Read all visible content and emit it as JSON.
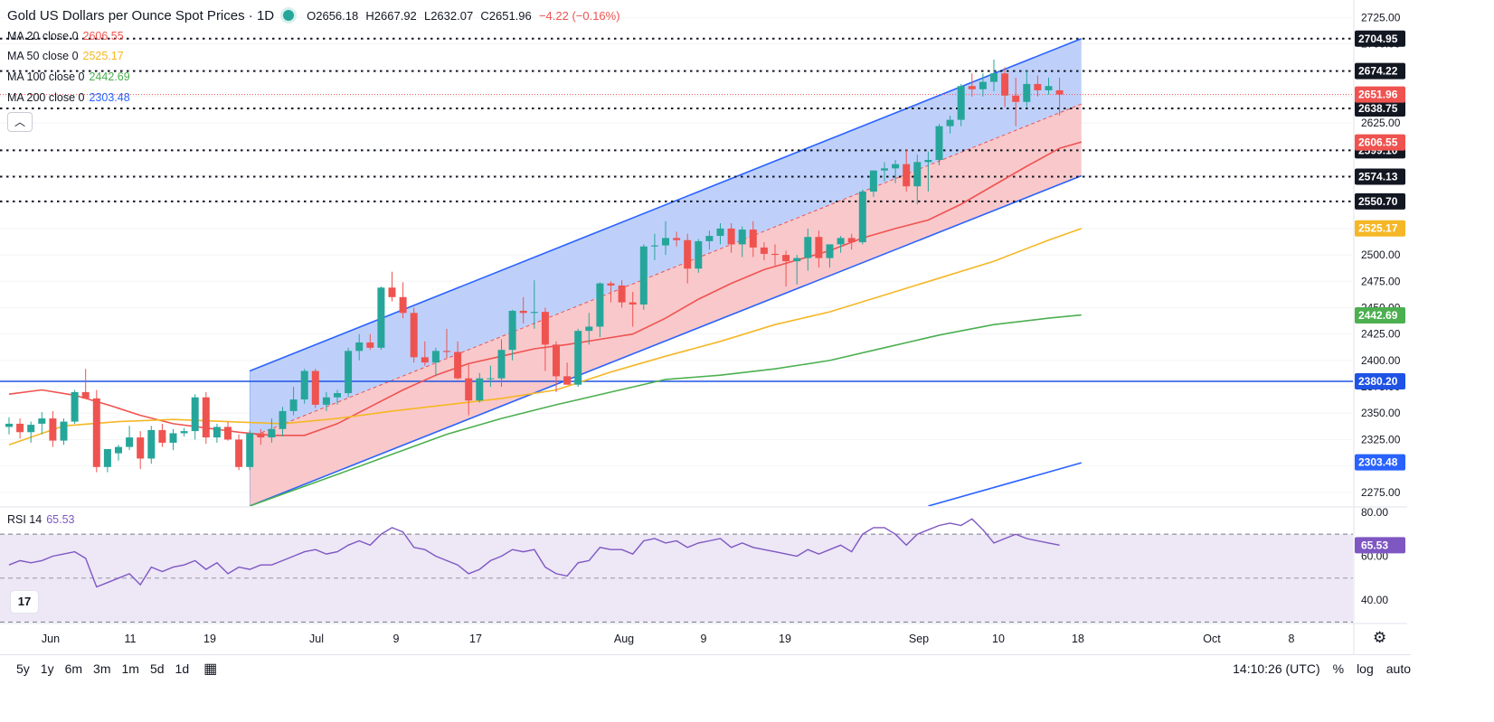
{
  "header": {
    "title": "Gold US Dollars per Ounce Spot Prices · 1D",
    "open": "O2656.18",
    "high": "H2667.92",
    "low": "L2632.07",
    "close": "C2651.96",
    "change": "−4.22 (−0.16%)"
  },
  "indicators": [
    {
      "label": "MA 20 close 0",
      "value": "2606.55",
      "color": "#ef5350"
    },
    {
      "label": "MA 50 close 0",
      "value": "2525.17",
      "color": "#f5b726"
    },
    {
      "label": "MA 100 close 0",
      "value": "2442.69",
      "color": "#4caf50"
    },
    {
      "label": "MA 200 close 0",
      "value": "2303.48",
      "color": "#2962ff"
    }
  ],
  "rsi": {
    "label": "RSI 14",
    "value": "65.53",
    "color": "#7e57c2"
  },
  "bottom_bar": {
    "timeframes": [
      "5y",
      "1y",
      "6m",
      "3m",
      "1m",
      "5d",
      "1d"
    ],
    "time": "14:10:26 (UTC)",
    "percent": "%",
    "log": "log",
    "auto": "auto"
  },
  "icons": {
    "collapse": "chevron-up-icon",
    "logo": "tradingview-logo-icon",
    "calendar": "calendar-icon",
    "settings": "gear-icon"
  },
  "colors": {
    "up": "#26a69a",
    "down": "#ef5350",
    "channel_upper_fill": "#bbcdfa",
    "channel_lower_fill": "#f9c5c8",
    "channel_line": "#2962ff",
    "rsi_band": "#ede7f6"
  },
  "chart_data": {
    "type": "candlestick",
    "title": "Gold US Dollars per Ounce Spot Prices · 1D",
    "x_tick_labels": [
      "Jun",
      "11",
      "19",
      "Jul",
      "9",
      "17",
      "Aug",
      "9",
      "19",
      "Sep",
      "10",
      "18",
      "Oct",
      "8"
    ],
    "y_ticks": [
      2275,
      2300,
      2325,
      2350,
      2375,
      2400,
      2425,
      2450,
      2475,
      2500,
      2525,
      2550,
      2575,
      2600,
      2625,
      2650,
      2675,
      2700,
      2725
    ],
    "ylim": [
      2262,
      2733
    ],
    "horizontal_levels": [
      {
        "value": 2704.95,
        "label": "2704.95",
        "style": "dotted"
      },
      {
        "value": 2674.22,
        "label": "2674.22",
        "style": "dotted"
      },
      {
        "value": 2638.75,
        "label": "2638.75",
        "style": "dotted"
      },
      {
        "value": 2599.1,
        "label": "2599.10",
        "style": "dotted"
      },
      {
        "value": 2574.13,
        "label": "2574.13",
        "style": "dotted"
      },
      {
        "value": 2550.7,
        "label": "2550.70",
        "style": "dotted"
      },
      {
        "value": 2380.2,
        "label": "2380.20",
        "style": "solid"
      }
    ],
    "price_labels": [
      {
        "value": 2651.96,
        "label": "2651.96",
        "color": "#ef5350"
      },
      {
        "value": 2606.55,
        "label": "2606.55",
        "color": "#ef5350"
      },
      {
        "value": 2525.17,
        "label": "2525.17",
        "color": "#f5b726"
      },
      {
        "value": 2442.69,
        "label": "2442.69",
        "color": "#4caf50"
      },
      {
        "value": 2303.48,
        "label": "2303.48",
        "color": "#2962ff"
      }
    ],
    "candles": [
      [
        2337,
        2346,
        2330,
        2340
      ],
      [
        2340,
        2345,
        2326,
        2332
      ],
      [
        2332,
        2342,
        2322,
        2339
      ],
      [
        2340,
        2351,
        2330,
        2345
      ],
      [
        2345,
        2352,
        2318,
        2324
      ],
      [
        2324,
        2345,
        2320,
        2342
      ],
      [
        2342,
        2372,
        2340,
        2370
      ],
      [
        2370,
        2392,
        2368,
        2364
      ],
      [
        2364,
        2372,
        2294,
        2299
      ],
      [
        2299,
        2312,
        2294,
        2316
      ],
      [
        2312,
        2320,
        2305,
        2318
      ],
      [
        2318,
        2338,
        2315,
        2327
      ],
      [
        2327,
        2333,
        2297,
        2307
      ],
      [
        2307,
        2338,
        2302,
        2334
      ],
      [
        2334,
        2340,
        2318,
        2322
      ],
      [
        2322,
        2335,
        2315,
        2331
      ],
      [
        2331,
        2336,
        2328,
        2333
      ],
      [
        2333,
        2368,
        2325,
        2365
      ],
      [
        2365,
        2370,
        2321,
        2327
      ],
      [
        2327,
        2340,
        2322,
        2337
      ],
      [
        2337,
        2342,
        2324,
        2325
      ],
      [
        2325,
        2330,
        2296,
        2299
      ],
      [
        2299,
        2334,
        2296,
        2331
      ],
      [
        2331,
        2335,
        2320,
        2327
      ],
      [
        2327,
        2345,
        2322,
        2335
      ],
      [
        2335,
        2356,
        2328,
        2352
      ],
      [
        2352,
        2375,
        2348,
        2363
      ],
      [
        2363,
        2392,
        2359,
        2390
      ],
      [
        2390,
        2392,
        2355,
        2358
      ],
      [
        2358,
        2370,
        2352,
        2365
      ],
      [
        2365,
        2372,
        2358,
        2369
      ],
      [
        2369,
        2412,
        2365,
        2409
      ],
      [
        2409,
        2425,
        2400,
        2417
      ],
      [
        2417,
        2425,
        2410,
        2412
      ],
      [
        2412,
        2470,
        2410,
        2469
      ],
      [
        2469,
        2484,
        2456,
        2460
      ],
      [
        2460,
        2474,
        2440,
        2445
      ],
      [
        2445,
        2450,
        2398,
        2403
      ],
      [
        2403,
        2418,
        2395,
        2398
      ],
      [
        2398,
        2412,
        2385,
        2409
      ],
      [
        2409,
        2430,
        2402,
        2408
      ],
      [
        2408,
        2418,
        2382,
        2383
      ],
      [
        2383,
        2396,
        2348,
        2362
      ],
      [
        2362,
        2388,
        2360,
        2383
      ],
      [
        2383,
        2395,
        2375,
        2383
      ],
      [
        2383,
        2420,
        2375,
        2410
      ],
      [
        2410,
        2448,
        2400,
        2447
      ],
      [
        2447,
        2460,
        2435,
        2445
      ],
      [
        2445,
        2476,
        2430,
        2446
      ],
      [
        2446,
        2450,
        2390,
        2415
      ],
      [
        2415,
        2418,
        2370,
        2385
      ],
      [
        2385,
        2398,
        2378,
        2377
      ],
      [
        2377,
        2430,
        2375,
        2428
      ],
      [
        2428,
        2445,
        2415,
        2432
      ],
      [
        2432,
        2474,
        2422,
        2473
      ],
      [
        2473,
        2475,
        2455,
        2471
      ],
      [
        2471,
        2476,
        2450,
        2455
      ],
      [
        2455,
        2465,
        2432,
        2453
      ],
      [
        2453,
        2510,
        2448,
        2508
      ],
      [
        2508,
        2520,
        2495,
        2509
      ],
      [
        2509,
        2532,
        2500,
        2516
      ],
      [
        2516,
        2522,
        2508,
        2514
      ],
      [
        2514,
        2520,
        2473,
        2487
      ],
      [
        2487,
        2515,
        2483,
        2513
      ],
      [
        2513,
        2523,
        2505,
        2518
      ],
      [
        2518,
        2530,
        2510,
        2525
      ],
      [
        2525,
        2530,
        2502,
        2510
      ],
      [
        2510,
        2527,
        2498,
        2524
      ],
      [
        2524,
        2532,
        2498,
        2507
      ],
      [
        2507,
        2512,
        2495,
        2501
      ],
      [
        2501,
        2510,
        2490,
        2500
      ],
      [
        2500,
        2504,
        2470,
        2494
      ],
      [
        2494,
        2500,
        2472,
        2497
      ],
      [
        2497,
        2525,
        2485,
        2517
      ],
      [
        2517,
        2523,
        2488,
        2497
      ],
      [
        2497,
        2507,
        2488,
        2510
      ],
      [
        2510,
        2518,
        2502,
        2516
      ],
      [
        2516,
        2520,
        2505,
        2512
      ],
      [
        2512,
        2562,
        2510,
        2560
      ],
      [
        2560,
        2580,
        2555,
        2580
      ],
      [
        2580,
        2588,
        2570,
        2582
      ],
      [
        2582,
        2590,
        2568,
        2586
      ],
      [
        2586,
        2600,
        2560,
        2565
      ],
      [
        2565,
        2595,
        2548,
        2588
      ],
      [
        2588,
        2598,
        2560,
        2590
      ],
      [
        2590,
        2624,
        2585,
        2622
      ],
      [
        2622,
        2632,
        2615,
        2628
      ],
      [
        2628,
        2662,
        2622,
        2660
      ],
      [
        2660,
        2672,
        2650,
        2657
      ],
      [
        2657,
        2672,
        2650,
        2664
      ],
      [
        2664,
        2685,
        2655,
        2672
      ],
      [
        2672,
        2678,
        2640,
        2651
      ],
      [
        2651,
        2668,
        2622,
        2645
      ],
      [
        2645,
        2675,
        2640,
        2662
      ],
      [
        2662,
        2670,
        2650,
        2656
      ],
      [
        2656,
        2668,
        2652,
        2660
      ],
      [
        2656,
        2668,
        2632,
        2652
      ]
    ],
    "series": [
      {
        "name": "MA 20",
        "values": [
          [
            0,
            2368
          ],
          [
            3,
            2372
          ],
          [
            6,
            2367
          ],
          [
            9,
            2358
          ],
          [
            12,
            2348
          ],
          [
            15,
            2340
          ],
          [
            18,
            2336
          ],
          [
            21,
            2332
          ],
          [
            24,
            2329
          ],
          [
            27,
            2329
          ],
          [
            30,
            2340
          ],
          [
            33,
            2356
          ],
          [
            36,
            2372
          ],
          [
            39,
            2386
          ],
          [
            42,
            2397
          ],
          [
            45,
            2404
          ],
          [
            48,
            2411
          ],
          [
            51,
            2415
          ],
          [
            54,
            2420
          ],
          [
            57,
            2425
          ],
          [
            60,
            2440
          ],
          [
            63,
            2458
          ],
          [
            66,
            2473
          ],
          [
            69,
            2486
          ],
          [
            72,
            2495
          ],
          [
            75,
            2504
          ],
          [
            78,
            2516
          ],
          [
            81,
            2525
          ],
          [
            84,
            2533
          ],
          [
            87,
            2548
          ],
          [
            90,
            2566
          ],
          [
            93,
            2584
          ],
          [
            96,
            2601
          ],
          [
            98,
            2607
          ]
        ]
      },
      {
        "name": "MA 50",
        "values": [
          [
            0,
            2320
          ],
          [
            5,
            2338
          ],
          [
            10,
            2342
          ],
          [
            15,
            2344
          ],
          [
            20,
            2342
          ],
          [
            25,
            2340
          ],
          [
            30,
            2345
          ],
          [
            35,
            2352
          ],
          [
            40,
            2358
          ],
          [
            45,
            2364
          ],
          [
            50,
            2372
          ],
          [
            55,
            2389
          ],
          [
            60,
            2404
          ],
          [
            65,
            2418
          ],
          [
            70,
            2434
          ],
          [
            75,
            2446
          ],
          [
            80,
            2462
          ],
          [
            85,
            2478
          ],
          [
            90,
            2494
          ],
          [
            95,
            2514
          ],
          [
            98,
            2525
          ]
        ]
      },
      {
        "name": "MA 100",
        "values": [
          [
            22,
            2262
          ],
          [
            30,
            2292
          ],
          [
            35,
            2311
          ],
          [
            40,
            2330
          ],
          [
            45,
            2345
          ],
          [
            50,
            2358
          ],
          [
            55,
            2370
          ],
          [
            60,
            2382
          ],
          [
            65,
            2386
          ],
          [
            70,
            2392
          ],
          [
            75,
            2400
          ],
          [
            80,
            2412
          ],
          [
            85,
            2424
          ],
          [
            90,
            2434
          ],
          [
            95,
            2440
          ],
          [
            98,
            2443
          ]
        ]
      },
      {
        "name": "MA 200",
        "values": [
          [
            84,
            2262
          ],
          [
            98,
            2303
          ]
        ]
      }
    ],
    "channel": {
      "upper": [
        [
          22,
          2390
        ],
        [
          98,
          2705
        ]
      ],
      "mid": [
        [
          22,
          2327
        ],
        [
          98,
          2643
        ]
      ],
      "lower": [
        [
          22,
          2262
        ],
        [
          98,
          2575
        ]
      ]
    },
    "rsi_series": [
      56,
      58,
      57,
      58,
      60,
      61,
      62,
      59,
      46,
      48,
      50,
      52,
      47,
      55,
      53,
      55,
      56,
      58,
      54,
      57,
      52,
      55,
      54,
      56,
      56,
      58,
      60,
      62,
      63,
      61,
      62,
      65,
      67,
      65,
      70,
      73,
      71,
      64,
      63,
      60,
      58,
      56,
      52,
      54,
      58,
      60,
      63,
      62,
      63,
      55,
      52,
      51,
      57,
      58,
      64,
      63,
      63,
      61,
      67,
      68,
      66,
      67,
      64,
      66,
      67,
      68,
      64,
      66,
      64,
      63,
      62,
      61,
      60,
      63,
      61,
      63,
      65,
      62,
      70,
      73,
      73,
      70,
      65,
      70,
      72,
      74,
      75,
      74,
      77,
      72,
      66,
      68,
      70,
      68,
      67,
      66,
      65
    ],
    "rsi_ylim": [
      31,
      82
    ],
    "rsi_ticks": [
      40,
      60,
      80
    ],
    "rsi_band": [
      30,
      70
    ],
    "rsi_midline": 50
  }
}
